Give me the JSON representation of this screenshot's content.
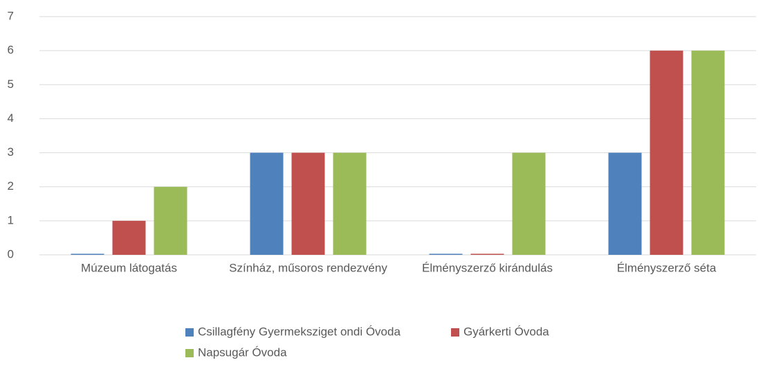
{
  "chart_data": {
    "type": "bar",
    "categories": [
      "Múzeum látogatás",
      "Színház, műsoros rendezvény",
      "Élményszerző kirándulás",
      "Élményszerző séta"
    ],
    "series": [
      {
        "name": "Csillagfény Gyermeksziget ondi Óvoda",
        "color": "#4f81bd",
        "values": [
          0,
          3,
          0,
          3
        ]
      },
      {
        "name": "Gyárkerti Óvoda",
        "color": "#c0504d",
        "values": [
          1,
          3,
          0,
          6
        ]
      },
      {
        "name": "Napsugár Óvoda",
        "color": "#9bbb59",
        "values": [
          2,
          3,
          3,
          6
        ]
      }
    ],
    "ylim": [
      0,
      7
    ],
    "yticks": [
      0,
      1,
      2,
      3,
      4,
      5,
      6,
      7
    ],
    "grid": true,
    "legend": "bottom"
  }
}
